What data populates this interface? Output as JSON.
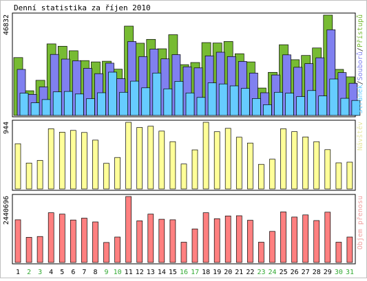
{
  "title": "Denní statistika za říjen 2010",
  "chart_data": [
    {
      "type": "bar",
      "name": "visits_panel",
      "ymax_label": "46832",
      "ylim": [
        0,
        46832
      ],
      "right_label_parts": [
        {
          "text": "Stránek",
          "color": "#66CCFF"
        },
        {
          "text": "/",
          "color": "#333333"
        },
        {
          "text": "Souborů",
          "color": "#8080F0"
        },
        {
          "text": "/",
          "color": "#333333"
        },
        {
          "text": "Přístupů",
          "color": "#77BB33"
        }
      ],
      "categories": [
        "1",
        "2",
        "3",
        "4",
        "5",
        "6",
        "7",
        "8",
        "9",
        "10",
        "11",
        "12",
        "13",
        "14",
        "15",
        "16",
        "17",
        "18",
        "19",
        "20",
        "21",
        "22",
        "23",
        "24",
        "25",
        "26",
        "27",
        "28",
        "29",
        "30",
        "31"
      ],
      "series": [
        {
          "name": "Přístupů",
          "color": "#77BB33",
          "values": [
            27000,
            11500,
            16400,
            33400,
            32300,
            30200,
            25600,
            25000,
            25300,
            21600,
            41700,
            33700,
            35500,
            31100,
            37700,
            23700,
            24700,
            34000,
            33800,
            34500,
            28800,
            25000,
            12800,
            20100,
            33000,
            26000,
            28000,
            31500,
            46832,
            21500,
            18000
          ]
        },
        {
          "name": "Souborů",
          "color": "#8080F0",
          "values": [
            21500,
            9800,
            13300,
            28500,
            26300,
            25500,
            22000,
            19500,
            24400,
            17200,
            34500,
            27500,
            31000,
            26400,
            28400,
            22700,
            22200,
            27800,
            29500,
            27500,
            25200,
            19800,
            10600,
            18900,
            28300,
            22500,
            24200,
            26900,
            40000,
            20000,
            15000
          ]
        },
        {
          "name": "Stránek",
          "color": "#66CCFF",
          "values": [
            10400,
            5900,
            7400,
            11000,
            11200,
            10000,
            7800,
            10600,
            20200,
            10800,
            16000,
            12900,
            19800,
            12400,
            15900,
            10500,
            8400,
            15200,
            14700,
            13800,
            12600,
            7900,
            5000,
            10800,
            10400,
            8800,
            11600,
            9100,
            17000,
            8000,
            7000
          ]
        }
      ]
    },
    {
      "type": "bar",
      "name": "visitors_panel",
      "ymax_label": "944",
      "ylim": [
        0,
        944
      ],
      "right_label": "Návštěv",
      "right_label_color": "#E6E6A0",
      "categories": [
        "1",
        "2",
        "3",
        "4",
        "5",
        "6",
        "7",
        "8",
        "9",
        "10",
        "11",
        "12",
        "13",
        "14",
        "15",
        "16",
        "17",
        "18",
        "19",
        "20",
        "21",
        "22",
        "23",
        "24",
        "25",
        "26",
        "27",
        "28",
        "29",
        "30",
        "31"
      ],
      "series": [
        {
          "name": "Návštěv",
          "color": "#FFFF99",
          "values": [
            640,
            367,
            404,
            853,
            804,
            829,
            800,
            692,
            363,
            446,
            944,
            871,
            889,
            819,
            670,
            353,
            554,
            944,
            811,
            858,
            733,
            650,
            348,
            421,
            853,
            812,
            737,
            670,
            557,
            370,
            380
          ]
        }
      ]
    },
    {
      "type": "bar",
      "name": "traffic_panel",
      "ymax_label": "2440696",
      "ylim": [
        0,
        2440696
      ],
      "right_label": "Objem přenosu",
      "right_label_color": "#F0A0A0",
      "categories": [
        "1",
        "2",
        "3",
        "4",
        "5",
        "6",
        "7",
        "8",
        "9",
        "10",
        "11",
        "12",
        "13",
        "14",
        "15",
        "16",
        "17",
        "18",
        "19",
        "20",
        "21",
        "22",
        "23",
        "24",
        "25",
        "26",
        "27",
        "28",
        "29",
        "30",
        "31"
      ],
      "series": [
        {
          "name": "Objem přenosu",
          "color": "#FF8080",
          "values": [
            1580000,
            930000,
            960000,
            1840000,
            1790000,
            1570000,
            1640000,
            1500000,
            740000,
            940000,
            2440696,
            1540000,
            1790000,
            1600000,
            1580000,
            750000,
            1240000,
            1840000,
            1620000,
            1720000,
            1730000,
            1560000,
            750000,
            1150000,
            1870000,
            1680000,
            1760000,
            1550000,
            1860000,
            750000,
            940000
          ]
        }
      ]
    }
  ],
  "day_labels": [
    {
      "text": "1",
      "color": "#000000"
    },
    {
      "text": "2",
      "color": "#33AA33"
    },
    {
      "text": "3",
      "color": "#33AA33"
    },
    {
      "text": "4",
      "color": "#000000"
    },
    {
      "text": "5",
      "color": "#000000"
    },
    {
      "text": "6",
      "color": "#000000"
    },
    {
      "text": "7",
      "color": "#000000"
    },
    {
      "text": "8",
      "color": "#000000"
    },
    {
      "text": "9",
      "color": "#33AA33"
    },
    {
      "text": "10",
      "color": "#33AA33"
    },
    {
      "text": "11",
      "color": "#000000"
    },
    {
      "text": "12",
      "color": "#000000"
    },
    {
      "text": "13",
      "color": "#000000"
    },
    {
      "text": "14",
      "color": "#000000"
    },
    {
      "text": "15",
      "color": "#000000"
    },
    {
      "text": "16",
      "color": "#33AA33"
    },
    {
      "text": "17",
      "color": "#33AA33"
    },
    {
      "text": "18",
      "color": "#000000"
    },
    {
      "text": "19",
      "color": "#000000"
    },
    {
      "text": "20",
      "color": "#000000"
    },
    {
      "text": "21",
      "color": "#000000"
    },
    {
      "text": "22",
      "color": "#000000"
    },
    {
      "text": "23",
      "color": "#33AA33"
    },
    {
      "text": "24",
      "color": "#33AA33"
    },
    {
      "text": "25",
      "color": "#000000"
    },
    {
      "text": "26",
      "color": "#000000"
    },
    {
      "text": "27",
      "color": "#000000"
    },
    {
      "text": "28",
      "color": "#000000"
    },
    {
      "text": "29",
      "color": "#000000"
    },
    {
      "text": "30",
      "color": "#33AA33"
    },
    {
      "text": "31",
      "color": "#33AA33"
    }
  ]
}
